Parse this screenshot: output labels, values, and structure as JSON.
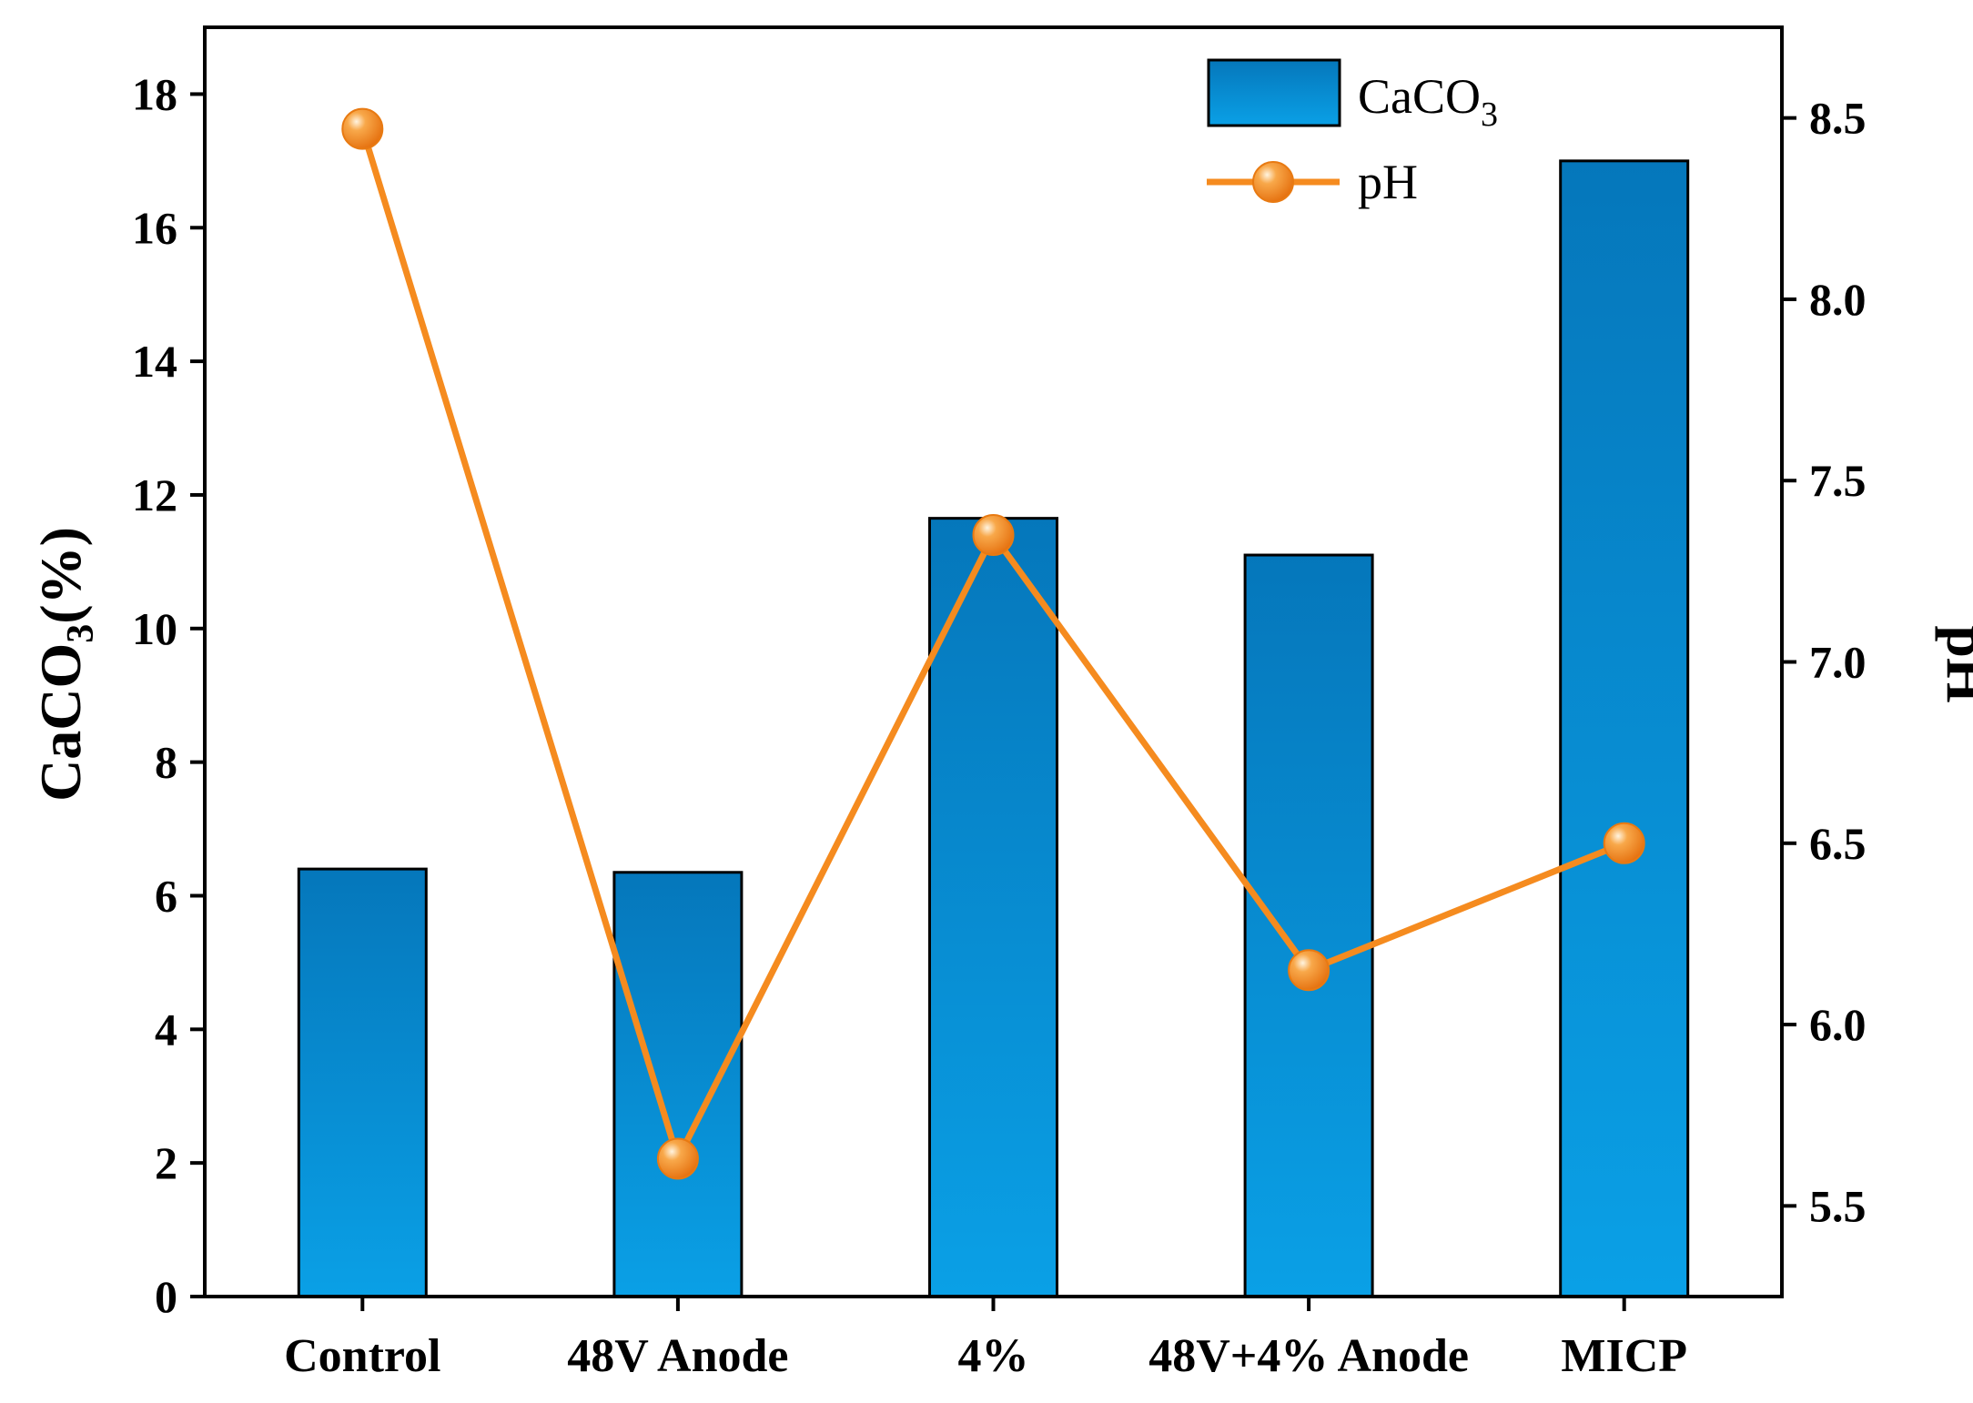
{
  "chart_data": {
    "type": "bar+line",
    "categories": [
      "Control",
      "48V Anode",
      "4%",
      "48V+4% Anode",
      "MICP"
    ],
    "series": [
      {
        "name": "CaCO3",
        "kind": "bar",
        "axis": "left",
        "values": [
          6.4,
          6.35,
          11.65,
          11.1,
          17.0
        ],
        "color": "#0a86cf"
      },
      {
        "name": "pH",
        "kind": "line",
        "axis": "right",
        "values": [
          8.47,
          5.63,
          7.35,
          6.15,
          6.5
        ],
        "color": "#f58b1f"
      }
    ],
    "left_axis": {
      "label_main": "CaCO",
      "label_sub": "3",
      "label_tail": "(%)",
      "ylim": [
        0,
        19
      ],
      "ticks": [
        "0",
        "2",
        "4",
        "6",
        "8",
        "10",
        "12",
        "14",
        "16",
        "18"
      ]
    },
    "right_axis": {
      "label": "pH",
      "ylim": [
        5.25,
        8.75
      ],
      "ticks": [
        "5.5",
        "6.0",
        "6.5",
        "7.0",
        "7.5",
        "8.0",
        "8.5"
      ]
    },
    "legend": {
      "position": "top-right",
      "bar_label_main": "CaCO",
      "bar_label_sub": "3",
      "line_label": "pH"
    }
  }
}
